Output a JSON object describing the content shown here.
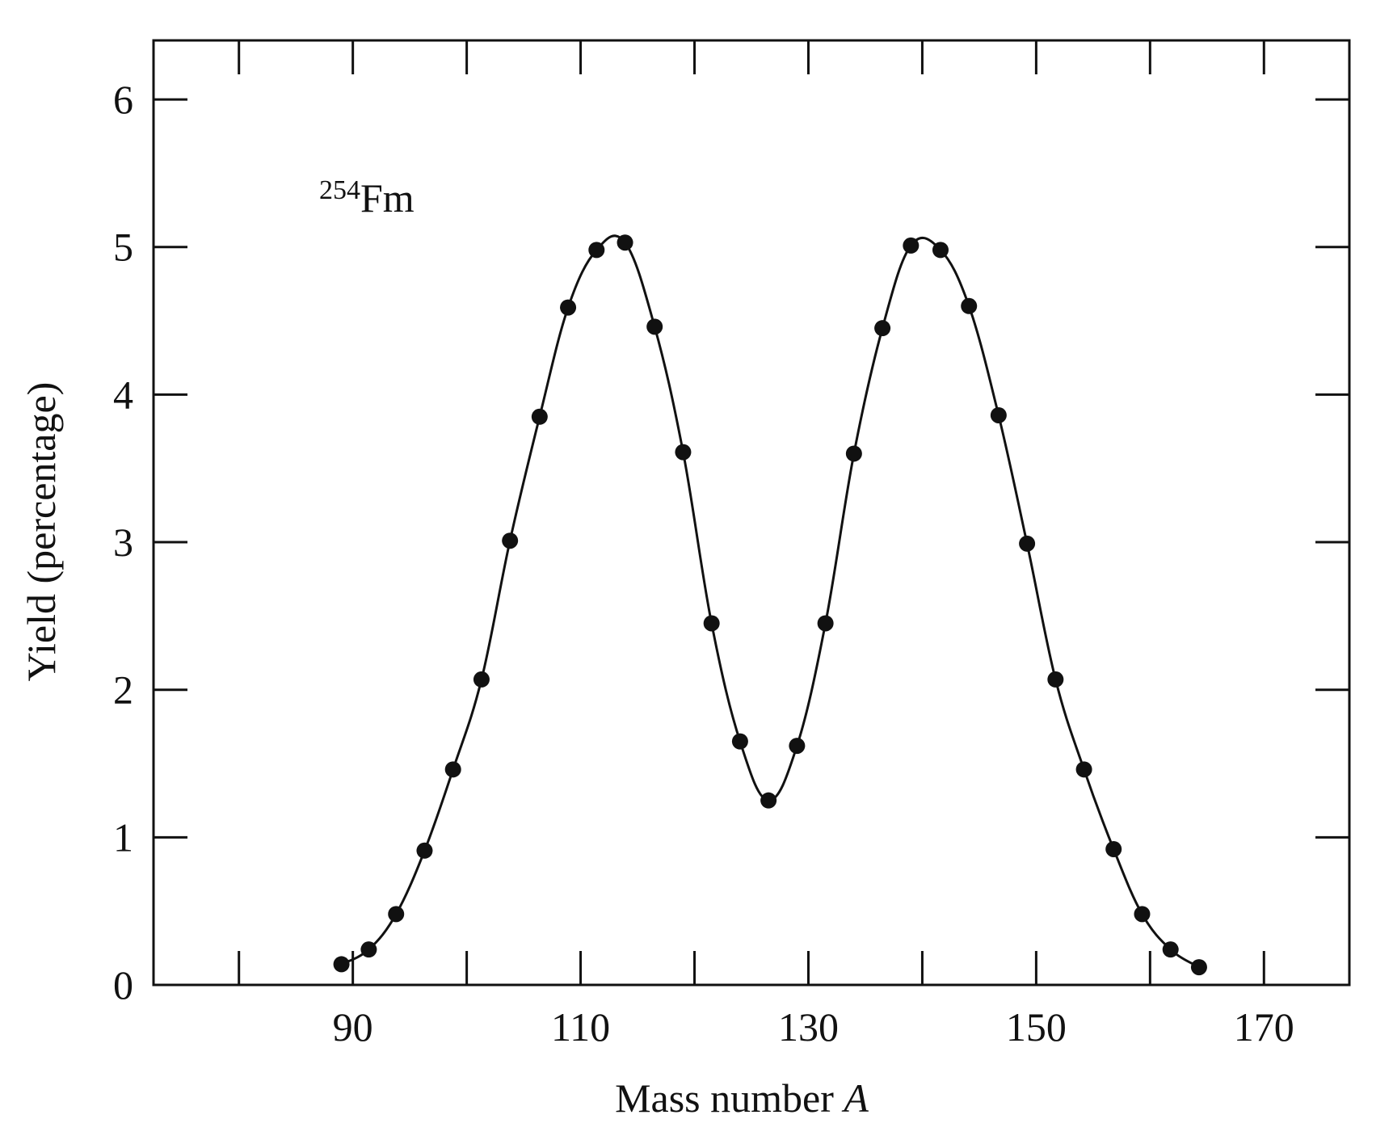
{
  "chart_data": {
    "type": "line",
    "title": "",
    "xlabel": "Mass number",
    "xlabel_italic": "A",
    "ylabel": "Yield (percentage)",
    "annotation": {
      "superscript": "254",
      "text": "Fm"
    },
    "xlim": [
      72.5,
      177.5
    ],
    "ylim": [
      0,
      6.4
    ],
    "x_ticks": [
      80,
      90,
      100,
      110,
      120,
      130,
      140,
      150,
      160,
      170
    ],
    "x_tick_labels": [
      "90",
      "110",
      "130",
      "150",
      "170"
    ],
    "x_tick_label_values": [
      90,
      110,
      130,
      150,
      170
    ],
    "y_ticks": [
      0,
      1,
      2,
      3,
      4,
      5,
      6
    ],
    "y_tick_labels": [
      "0",
      "1",
      "2",
      "3",
      "4",
      "5",
      "6"
    ],
    "grid": false,
    "line_color": "#111111",
    "marker_color": "#111111",
    "series": [
      {
        "x": [
          89,
          91.4,
          93.8,
          96.3,
          98.8,
          101.3,
          103.8,
          106.4,
          108.9,
          111.4,
          113.9,
          116.5,
          119.0,
          121.5,
          124.0,
          126.5,
          129.0,
          131.5,
          134.0,
          136.5,
          139.0,
          141.6,
          144.1,
          146.7,
          149.2,
          151.7,
          154.2,
          156.8,
          159.3,
          161.8,
          164.3
        ],
        "y": [
          0.14,
          0.24,
          0.48,
          0.91,
          1.46,
          2.07,
          3.01,
          3.85,
          4.59,
          4.98,
          5.03,
          4.46,
          3.61,
          2.45,
          1.65,
          1.25,
          1.62,
          2.45,
          3.6,
          4.45,
          5.01,
          4.98,
          4.6,
          3.86,
          2.99,
          2.07,
          1.46,
          0.92,
          0.48,
          0.24,
          0.12
        ]
      }
    ]
  }
}
